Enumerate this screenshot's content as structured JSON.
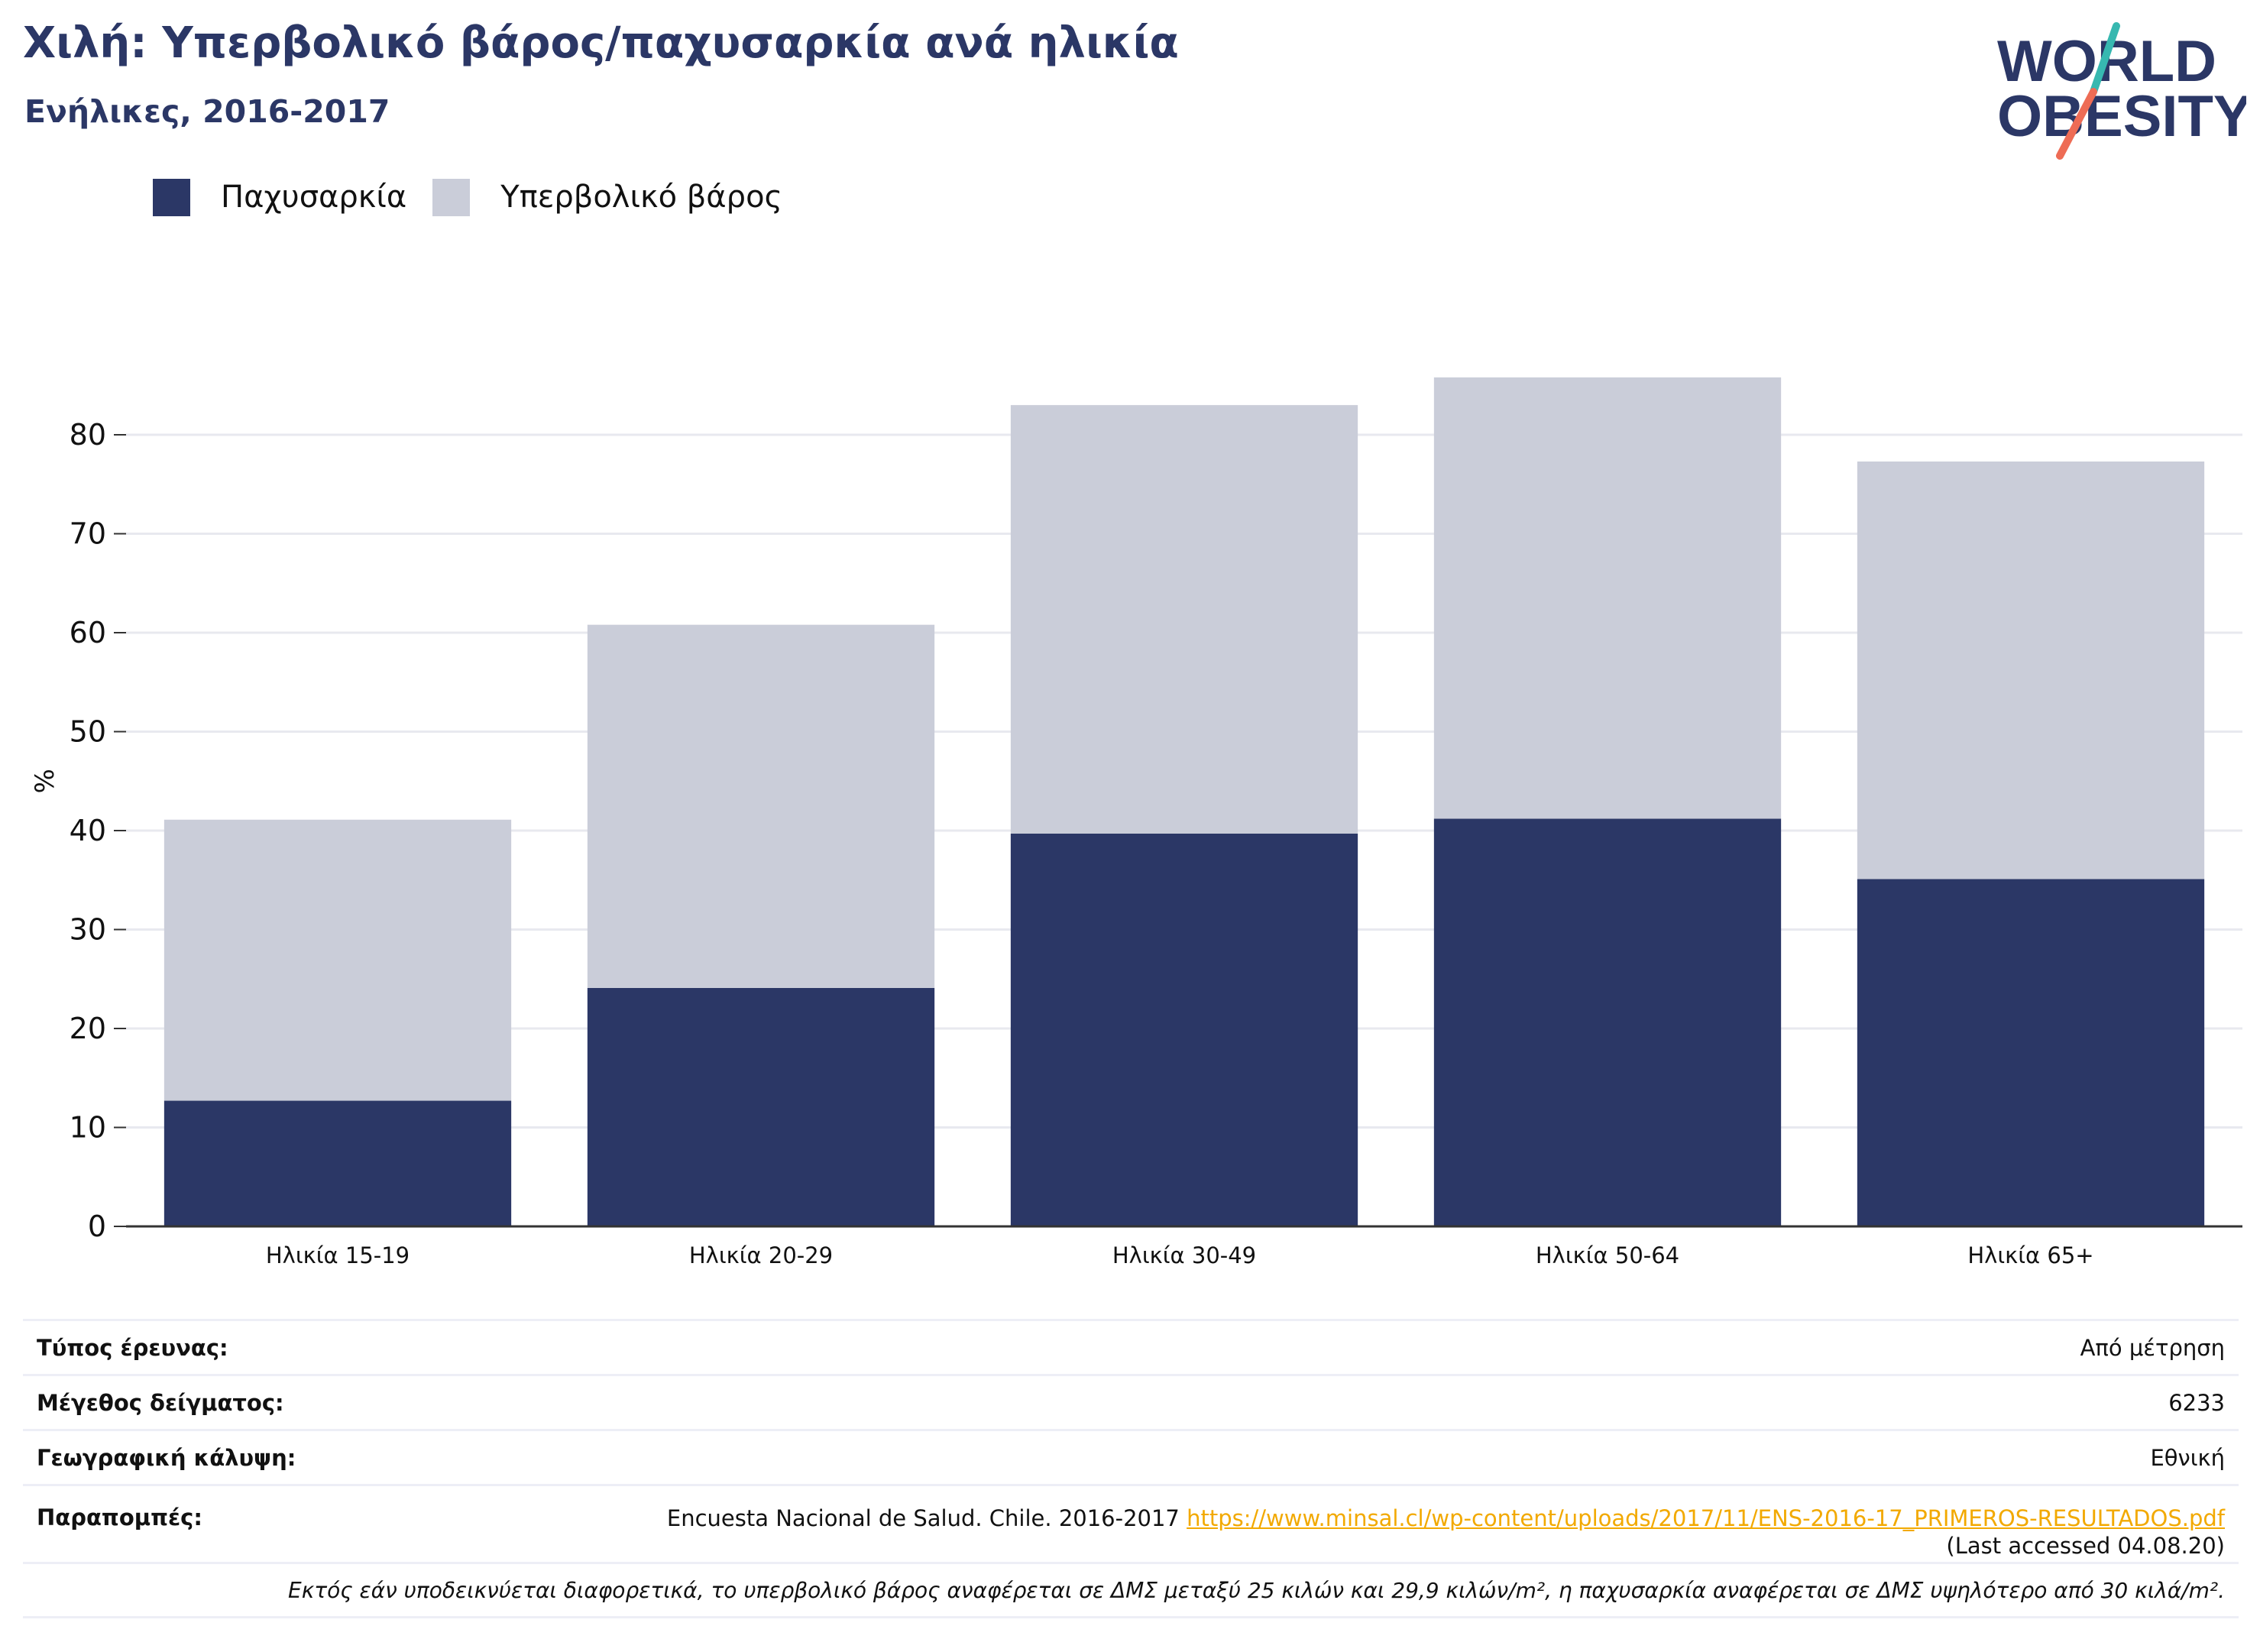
{
  "header": {
    "title": "Χιλή: Υπερβολικό βάρος/παχυσαρκία ανά ηλικία",
    "subtitle": "Ενήλικες, 2016-2017"
  },
  "logo": {
    "line1": "WORLD",
    "line2": "OBESITY",
    "colors": {
      "text": "#2b3766",
      "slash_teal": "#37b8b0",
      "slash_coral": "#ee6c55"
    }
  },
  "colors": {
    "obesity": "#2b3766",
    "overweight": "#cacdd9",
    "grid": "#e8e9ef",
    "axis": "#333333",
    "link": "#f2a900"
  },
  "legend": {
    "placement": "top-left",
    "items": [
      {
        "label": "Παχυσαρκία",
        "color": "#2b3766"
      },
      {
        "label": "Υπερβολικό βάρος",
        "color": "#cacdd9"
      }
    ]
  },
  "chart_data": {
    "type": "bar",
    "stacked": true,
    "ylabel": "%",
    "ylim": [
      0,
      90
    ],
    "yticks": [
      0,
      10,
      20,
      30,
      40,
      50,
      60,
      70,
      80
    ],
    "grid": true,
    "categories": [
      "Ηλικία 15-19",
      "Ηλικία 20-29",
      "Ηλικία 30-49",
      "Ηλικία 50-64",
      "Ηλικία 65+"
    ],
    "series": [
      {
        "name": "Παχυσαρκία",
        "color": "#2b3766",
        "values": [
          12.7,
          24.1,
          39.7,
          41.2,
          35.1
        ]
      },
      {
        "name": "Υπερβολικό βάρος",
        "color": "#cacdd9",
        "values": [
          28.4,
          36.7,
          43.3,
          44.6,
          42.2
        ]
      }
    ]
  },
  "info": {
    "survey_type_label": "Τύπος έρευνας:",
    "survey_type_value": "Από μέτρηση",
    "sample_size_label": "Μέγεθος δείγματος:",
    "sample_size_value": "6233",
    "coverage_label": "Γεωγραφική κάλυψη:",
    "coverage_value": "Εθνική",
    "references_label": "Παραπομπές:",
    "references_text": "Encuesta Nacional de Salud. Chile. 2016-2017 ",
    "references_link": "https://www.minsal.cl/wp-content/uploads/2017/11/ENS-2016-17_PRIMEROS-RESULTADOS.pdf",
    "references_accessed": "(Last accessed 04.08.20)",
    "note": "Εκτός εάν υποδεικνύεται διαφορετικά, το υπερβολικό βάρος αναφέρεται σε ΔΜΣ μεταξύ 25 κιλών και 29,9 κιλών/m², η παχυσαρκία αναφέρεται σε ΔΜΣ υψηλότερο από 30 κιλά/m²."
  }
}
